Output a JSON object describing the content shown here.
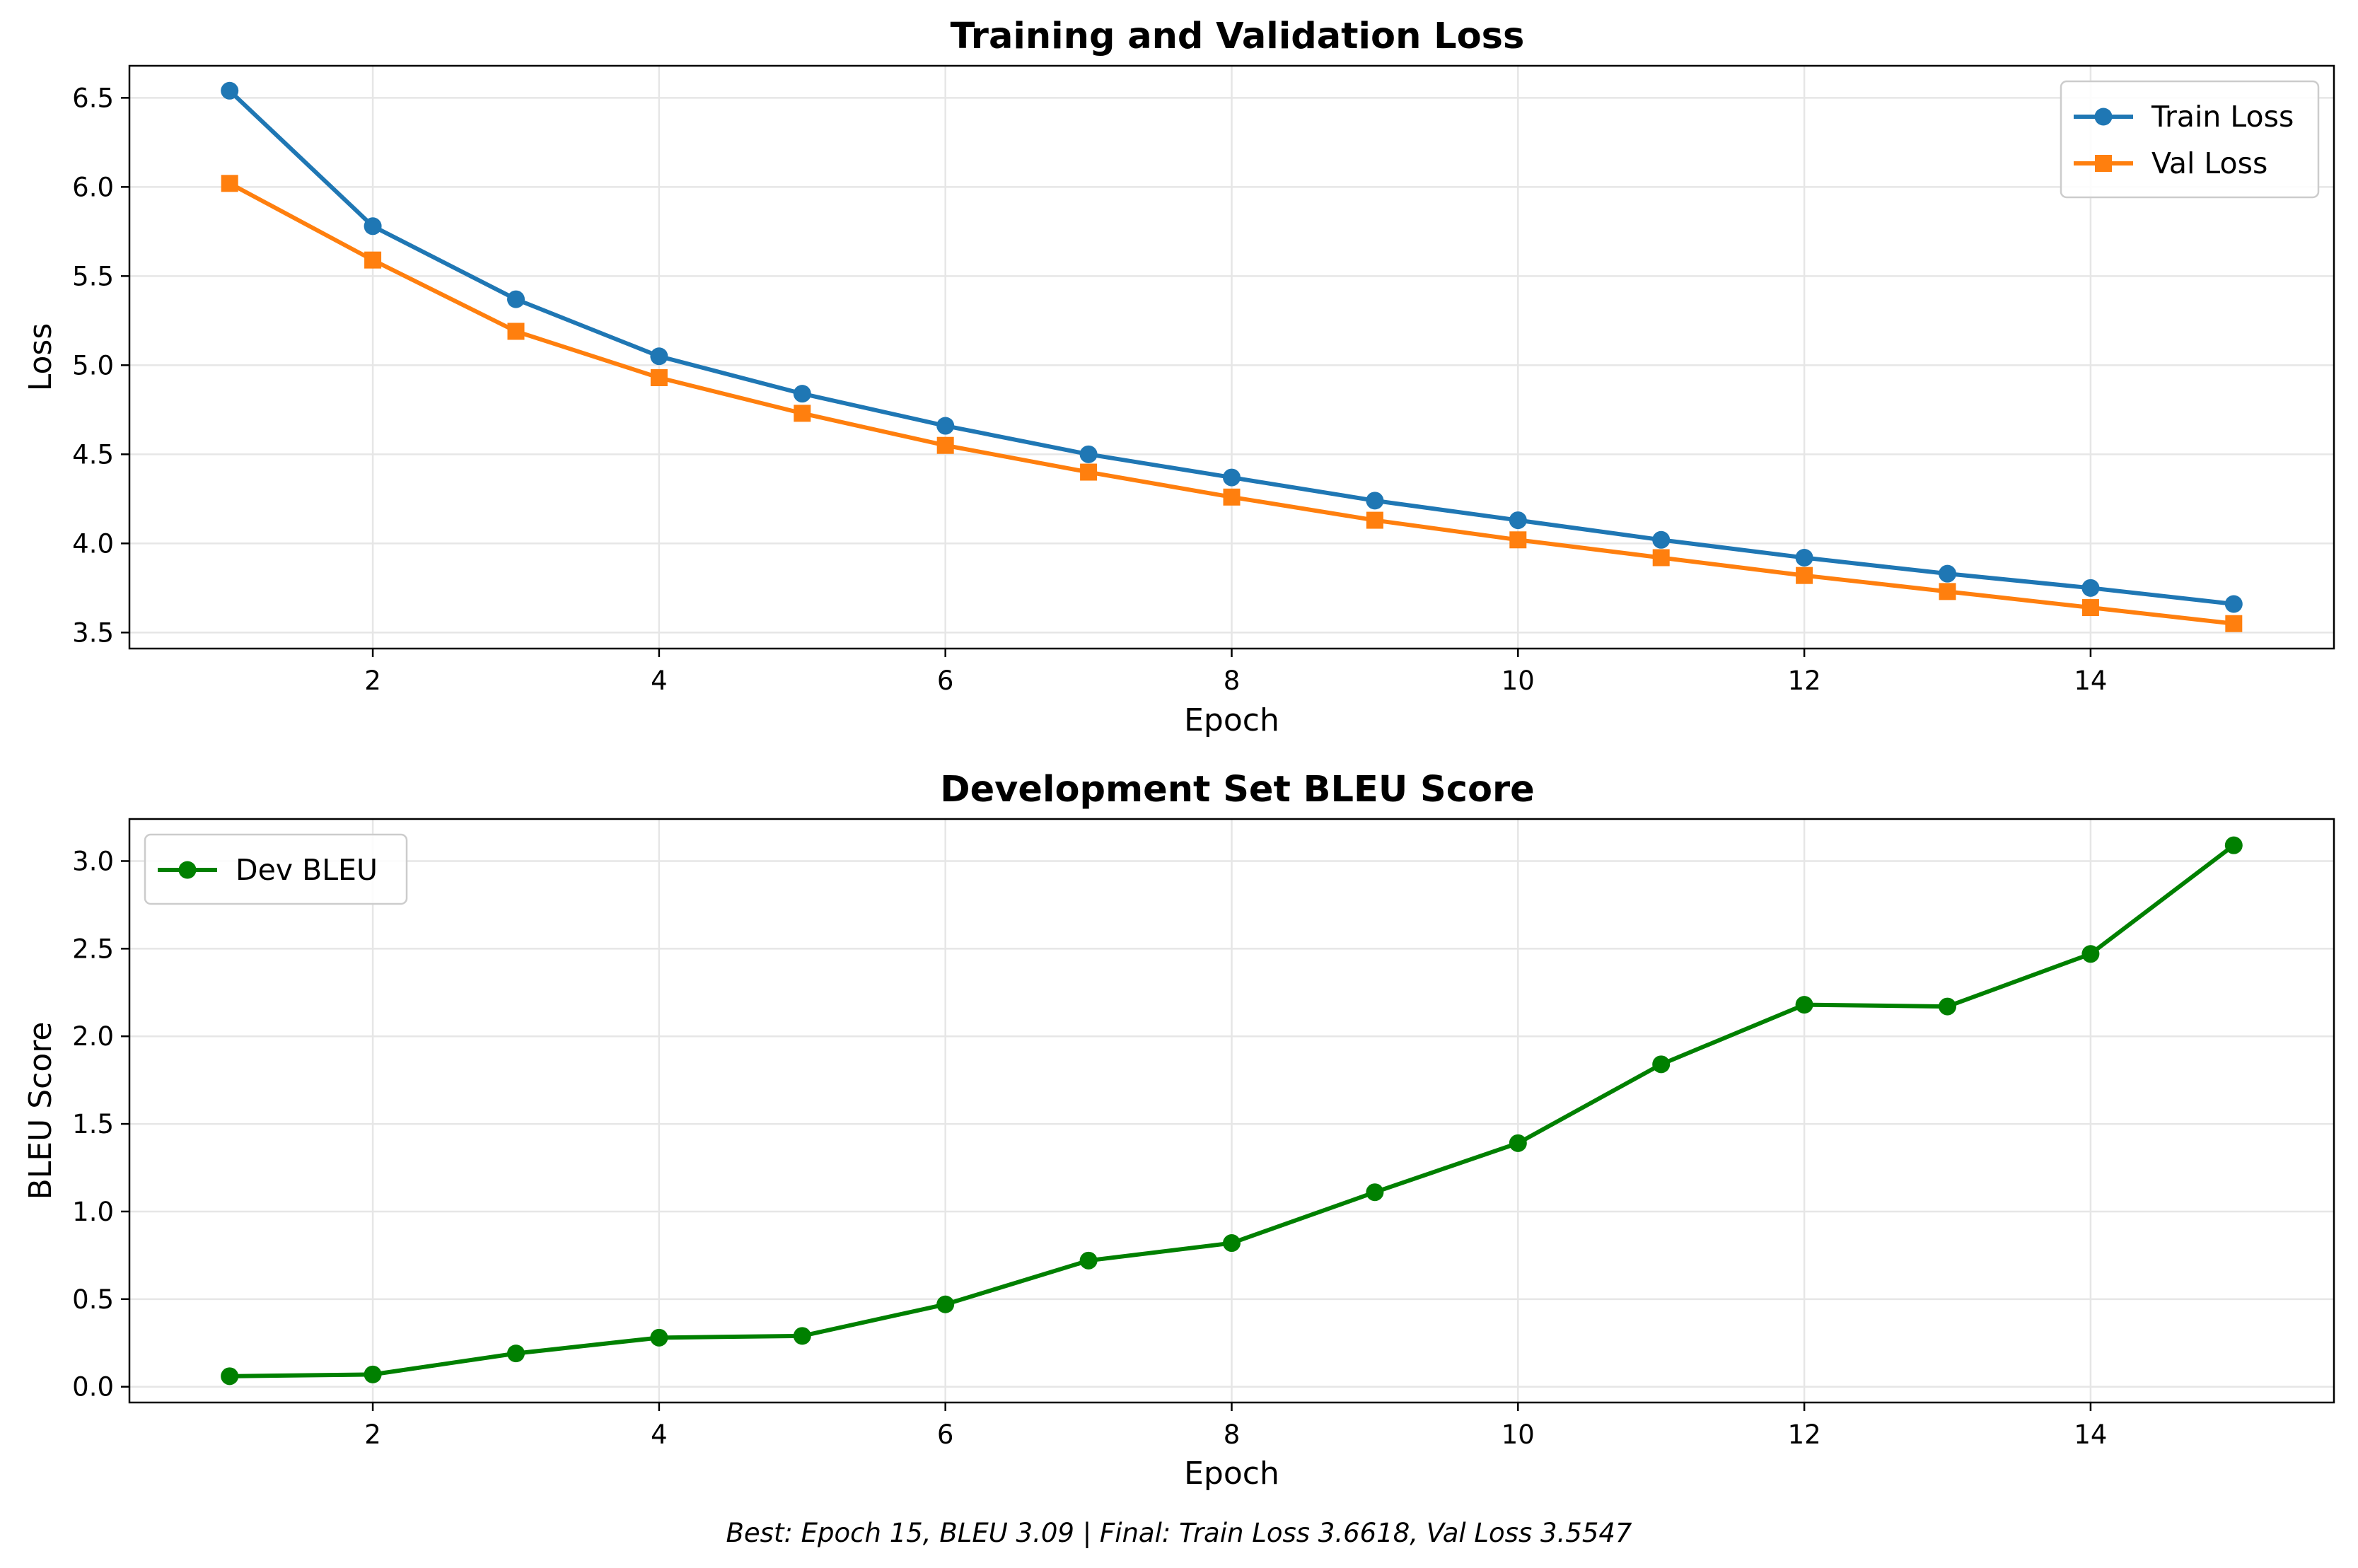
{
  "chart_data": [
    {
      "type": "line",
      "title": "Training and Validation Loss",
      "xlabel": "Epoch",
      "ylabel": "Loss",
      "xlim": [
        0.3,
        15.7
      ],
      "ylim": [
        3.41,
        6.68
      ],
      "xticks": [
        2,
        4,
        6,
        8,
        10,
        12,
        14
      ],
      "yticks": [
        3.5,
        4.0,
        4.5,
        5.0,
        5.5,
        6.0,
        6.5
      ],
      "grid": true,
      "legend_position": "top-right",
      "x": [
        1,
        2,
        3,
        4,
        5,
        6,
        7,
        8,
        9,
        10,
        11,
        12,
        13,
        14,
        15
      ],
      "series": [
        {
          "name": "Train Loss",
          "color": "#1f77b4",
          "marker": "circle",
          "values": [
            6.54,
            5.78,
            5.37,
            5.05,
            4.84,
            4.66,
            4.5,
            4.37,
            4.24,
            4.13,
            4.02,
            3.92,
            3.83,
            3.75,
            3.66
          ]
        },
        {
          "name": "Val Loss",
          "color": "#ff7f0e",
          "marker": "square",
          "values": [
            6.02,
            5.59,
            5.19,
            4.93,
            4.73,
            4.55,
            4.4,
            4.26,
            4.13,
            4.02,
            3.92,
            3.82,
            3.73,
            3.64,
            3.55
          ]
        }
      ]
    },
    {
      "type": "line",
      "title": "Development Set BLEU Score",
      "xlabel": "Epoch",
      "ylabel": "BLEU Score",
      "xlim": [
        0.3,
        15.7
      ],
      "ylim": [
        -0.09,
        3.24
      ],
      "xticks": [
        2,
        4,
        6,
        8,
        10,
        12,
        14
      ],
      "yticks": [
        0.0,
        0.5,
        1.0,
        1.5,
        2.0,
        2.5,
        3.0
      ],
      "grid": true,
      "legend_position": "top-left",
      "x": [
        1,
        2,
        3,
        4,
        5,
        6,
        7,
        8,
        9,
        10,
        11,
        12,
        13,
        14,
        15
      ],
      "series": [
        {
          "name": "Dev BLEU",
          "color": "#008000",
          "marker": "circle",
          "values": [
            0.06,
            0.07,
            0.19,
            0.28,
            0.29,
            0.47,
            0.72,
            0.82,
            1.11,
            1.39,
            1.84,
            2.18,
            2.17,
            2.47,
            3.09
          ]
        }
      ]
    }
  ],
  "footer": {
    "text": "Best: Epoch 15, BLEU 3.09 | Final: Train Loss 3.6618, Val Loss 3.5547"
  }
}
